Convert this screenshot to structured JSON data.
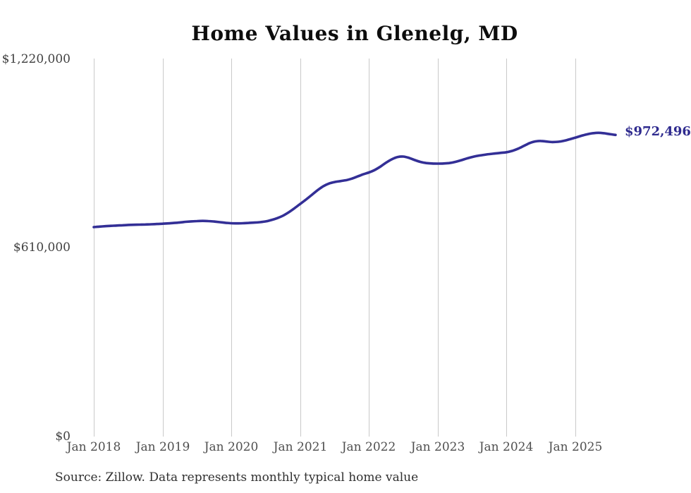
{
  "source_note": "Source: Zillow. Data represents monthly typical home value",
  "chart_data": {
    "type": "line",
    "title": "Home Values in Glenelg, MD",
    "unit": "USD",
    "frequency": "monthly",
    "start_month": "Jan 2018",
    "end_month": "Aug 2025",
    "x_tick_labels": [
      "Jan 2018",
      "Jan 2019",
      "Jan 2020",
      "Jan 2021",
      "Jan 2022",
      "Jan 2023",
      "Jan 2024",
      "Jan 2025"
    ],
    "y_tick_labels": [
      "$0",
      "$610,000",
      "$1,220,000"
    ],
    "y_ticks": [
      0,
      610000,
      1220000
    ],
    "ylim": [
      0,
      1220000
    ],
    "grid": "vertical-only",
    "legend": "none",
    "line_color": "#332f96",
    "end_label_color": "#2e2a8e",
    "end_label": "$972,496",
    "end_value": 972496,
    "series": [
      {
        "name": "Typical home value",
        "values": [
          674000,
          675500,
          677000,
          678000,
          679000,
          680000,
          681000,
          681500,
          682000,
          682500,
          683000,
          684000,
          685000,
          686000,
          687500,
          689000,
          691000,
          692500,
          693500,
          694000,
          693500,
          692000,
          690000,
          688000,
          686500,
          686000,
          686500,
          687500,
          688500,
          690000,
          692500,
          697000,
          703000,
          711000,
          722000,
          735000,
          749000,
          763000,
          778000,
          793000,
          806000,
          815000,
          820000,
          823000,
          826000,
          831000,
          838000,
          845000,
          851000,
          859000,
          870000,
          883000,
          894000,
          901000,
          902500,
          898000,
          891000,
          885000,
          881500,
          880000,
          879500,
          880000,
          881500,
          885000,
          890000,
          896000,
          901000,
          905000,
          908000,
          910500,
          912500,
          914500,
          916500,
          921000,
          928000,
          937000,
          946000,
          951500,
          953000,
          951000,
          949500,
          950500,
          953500,
          958500,
          964000,
          969500,
          974500,
          978000,
          979500,
          978000,
          975000,
          972496
        ]
      }
    ]
  }
}
